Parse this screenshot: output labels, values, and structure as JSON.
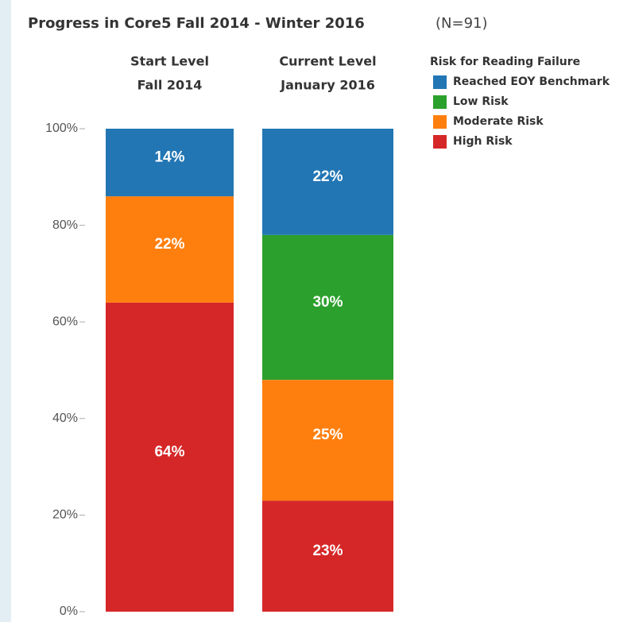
{
  "chart_data": {
    "type": "stacked_bar",
    "title": "Progress in Core5 Fall 2014 - Winter 2016",
    "annotation": "(N=91)",
    "legend_title": "Risk for Reading Failure",
    "legend_position": "top-right",
    "categories": [
      [
        "Start Level",
        "Fall 2014"
      ],
      [
        "Current Level",
        "January 2016"
      ]
    ],
    "series": [
      {
        "name": "Reached EOY Benchmark",
        "color": "#2276b4",
        "values": [
          14,
          22
        ],
        "value_labels": [
          "14%",
          "22%"
        ]
      },
      {
        "name": "Low Risk",
        "color": "#2ca02c",
        "values": [
          null,
          30
        ],
        "value_labels": [
          null,
          "30%"
        ]
      },
      {
        "name": "Moderate Risk",
        "color": "#ff7f0e",
        "values": [
          22,
          25
        ],
        "value_labels": [
          "22%",
          "25%"
        ]
      },
      {
        "name": "High Risk",
        "color": "#d62728",
        "values": [
          64,
          23
        ],
        "value_labels": [
          "64%",
          "23%"
        ]
      }
    ],
    "ylim": [
      0,
      100
    ],
    "yticks": [
      {
        "value": 0,
        "label": "0%"
      },
      {
        "value": 20,
        "label": "20%"
      },
      {
        "value": 40,
        "label": "40%"
      },
      {
        "value": 60,
        "label": "60%"
      },
      {
        "value": 80,
        "label": "80%"
      },
      {
        "value": 100,
        "label": "100%"
      }
    ]
  }
}
